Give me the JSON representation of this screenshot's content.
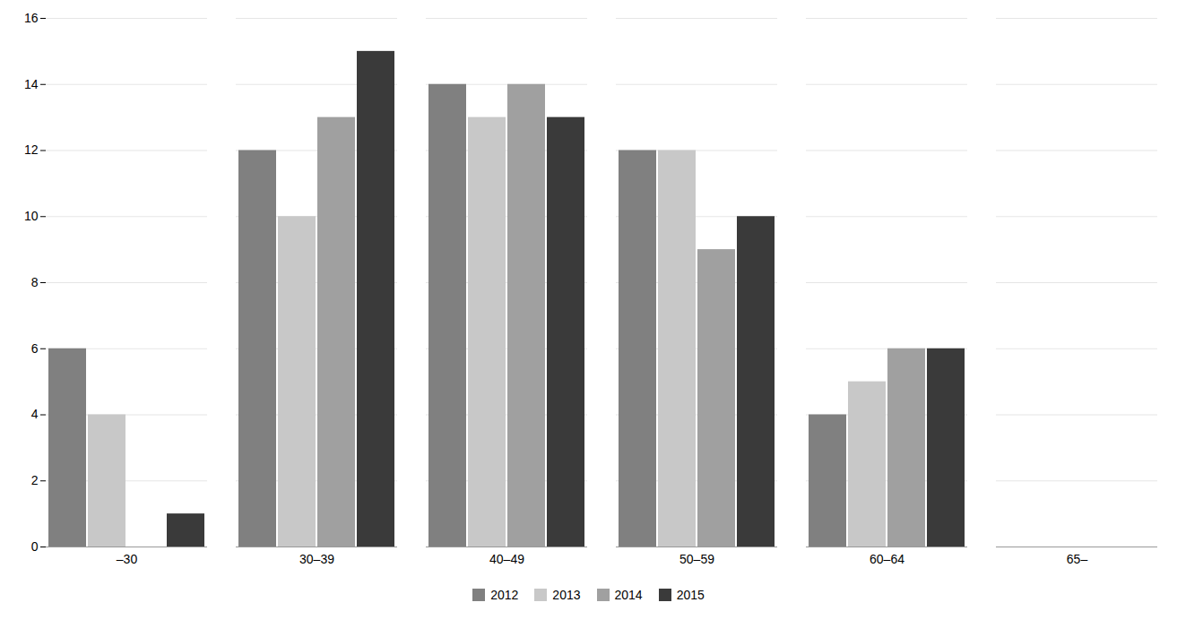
{
  "chart_data": {
    "type": "bar",
    "categories": [
      "–30",
      "30–39",
      "40–49",
      "50–59",
      "60–64",
      "65–"
    ],
    "series": [
      {
        "name": "2012",
        "color": "#808080",
        "values": [
          6,
          12,
          14,
          12,
          4,
          0
        ]
      },
      {
        "name": "2013",
        "color": "#c8c8c8",
        "values": [
          4,
          10,
          13,
          12,
          5,
          0
        ]
      },
      {
        "name": "2014",
        "color": "#a0a0a0",
        "values": [
          0,
          13,
          14,
          9,
          6,
          0
        ]
      },
      {
        "name": "2015",
        "color": "#3a3a3a",
        "values": [
          1,
          15,
          13,
          10,
          6,
          0
        ]
      }
    ],
    "ylim": [
      0,
      16
    ],
    "yticks": [
      0,
      2,
      4,
      6,
      8,
      10,
      12,
      14,
      16
    ],
    "grid": true,
    "legend": "bottom"
  }
}
